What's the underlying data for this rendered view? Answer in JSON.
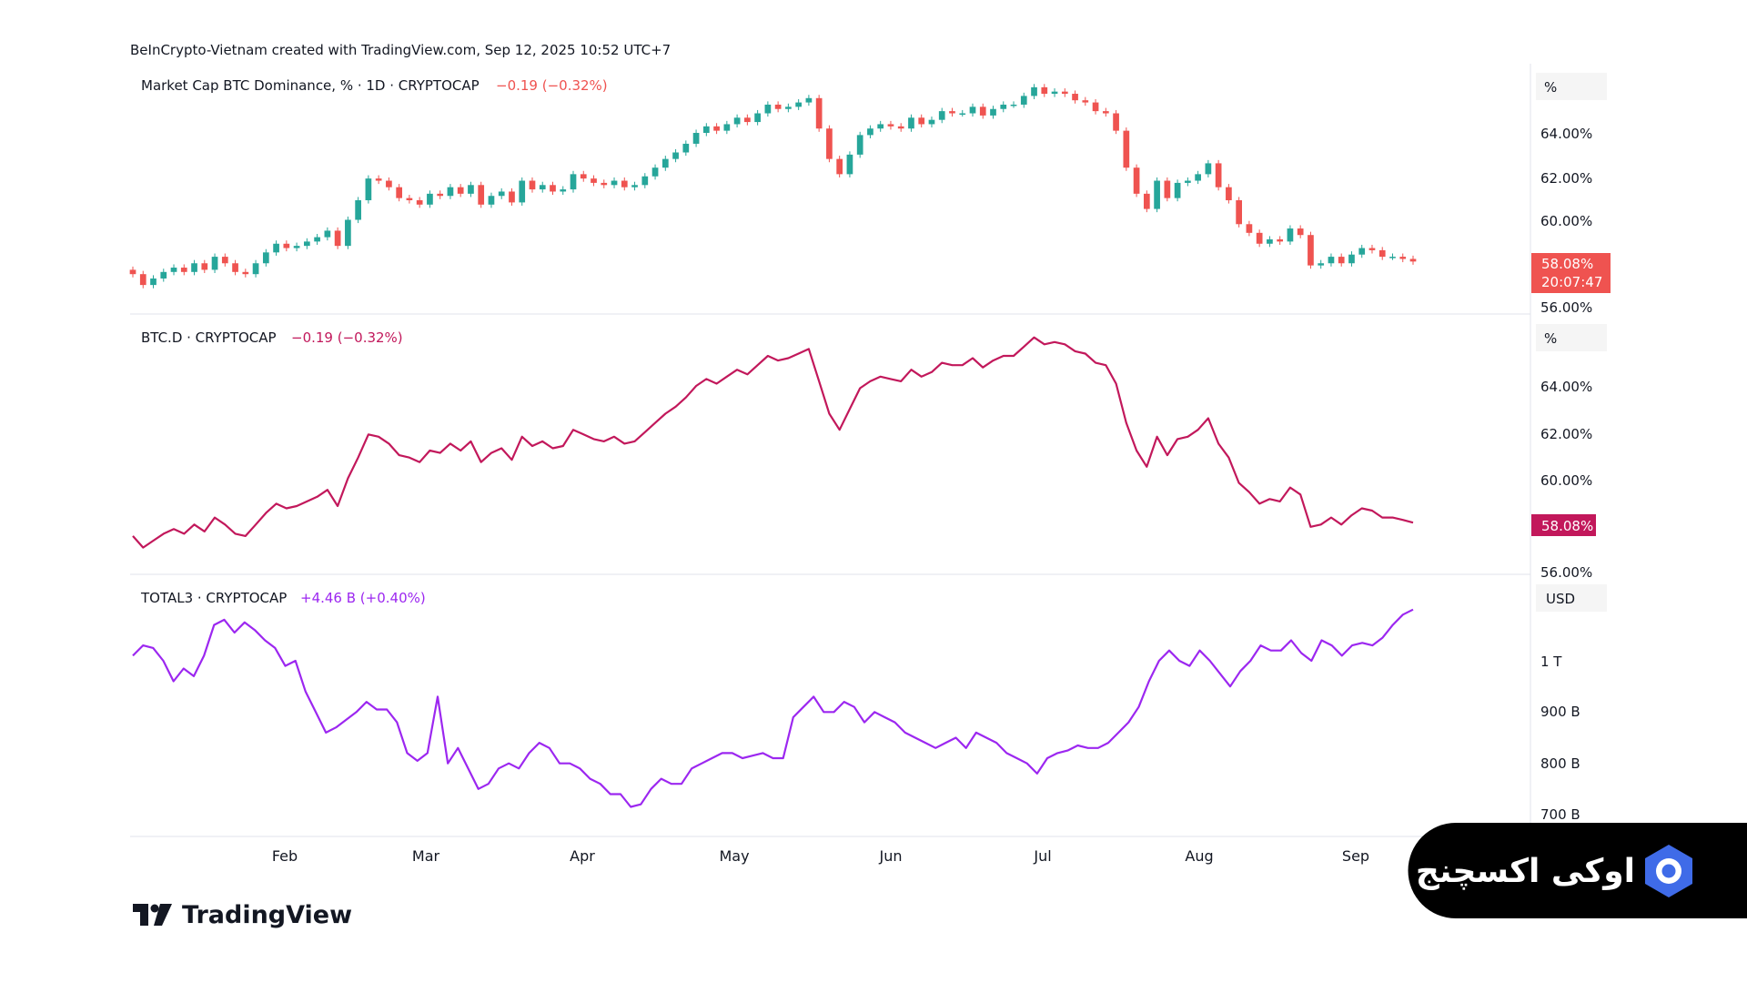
{
  "header": {
    "attribution": "BeInCrypto-Vietnam created with TradingView.com, Sep 12, 2025 10:52 UTC+7"
  },
  "colors": {
    "up": "#26a69a",
    "down": "#ef5350",
    "btcd_line": "#c2185b",
    "total3_line": "#9c27f0",
    "last_badge_candle": "#ef5350",
    "last_badge_line": "#c2185b"
  },
  "branding": {
    "tradingview": "TradingView",
    "watermark": "اوکی اکسچنج"
  },
  "panes": [
    {
      "id": "btc-dominance-candles",
      "legend_name": "Market Cap BTC Dominance, % · 1D · CRYPTOCAP",
      "legend_change": "−0.19 (−0.32%)",
      "unit": "%",
      "ticks": [
        "64.00%",
        "62.00%",
        "60.00%",
        "56.00%"
      ],
      "last_value": "58.08%",
      "countdown": "20:07:47"
    },
    {
      "id": "btc-d-line",
      "legend_name": "BTC.D · CRYPTOCAP",
      "legend_change": "−0.19 (−0.32%)",
      "unit": "%",
      "ticks": [
        "64.00%",
        "62.00%",
        "60.00%",
        "56.00%"
      ],
      "last_value": "58.08%"
    },
    {
      "id": "total3-line",
      "legend_name": "TOTAL3 · CRYPTOCAP",
      "legend_change": "+4.46 B (+0.40%)",
      "unit": "USD",
      "ticks": [
        "1 T",
        "900 B",
        "800 B",
        "700 B"
      ]
    }
  ],
  "x_axis": {
    "ticks": [
      "Feb",
      "Mar",
      "Apr",
      "May",
      "Jun",
      "Jul",
      "Aug",
      "Sep"
    ]
  },
  "chart_data": [
    {
      "type": "line",
      "title": "Market Cap BTC Dominance, % · 1D · CRYPTOCAP",
      "render": "candlestick",
      "unit": "%",
      "x_ticks": [
        "Feb",
        "Mar",
        "Apr",
        "May",
        "Jun",
        "Jul",
        "Aug",
        "Sep"
      ],
      "ylim": [
        55.4,
        66.6
      ],
      "series": [
        {
          "values": [
            57.5,
            57.0,
            57.3,
            57.6,
            57.8,
            57.6,
            58.0,
            57.7,
            58.3,
            58.0,
            57.6,
            57.5,
            58.0,
            58.5,
            58.9,
            58.7,
            58.8,
            59.0,
            59.2,
            59.5,
            58.8,
            60.0,
            60.9,
            61.9,
            61.8,
            61.5,
            61.0,
            60.9,
            60.7,
            61.2,
            61.1,
            61.5,
            61.2,
            61.6,
            60.7,
            61.1,
            61.3,
            60.8,
            61.8,
            61.4,
            61.6,
            61.3,
            61.4,
            62.1,
            61.9,
            61.7,
            61.6,
            61.8,
            61.5,
            61.6,
            62.0,
            62.4,
            62.8,
            63.1,
            63.5,
            64.0,
            64.3,
            64.1,
            64.4,
            64.7,
            64.5,
            64.9,
            65.3,
            65.1,
            65.2,
            65.4,
            65.6,
            64.2,
            62.8,
            62.1,
            63.0,
            63.9,
            64.2,
            64.4,
            64.3,
            64.2,
            64.7,
            64.4,
            64.6,
            65.0,
            64.9,
            64.9,
            65.2,
            64.8,
            65.1,
            65.3,
            65.3,
            65.7,
            66.1,
            65.8,
            65.9,
            65.8,
            65.5,
            65.4,
            65.0,
            64.9,
            64.1,
            62.4,
            61.2,
            60.5,
            61.8,
            61.0,
            61.7,
            61.8,
            62.1,
            62.6,
            61.5,
            60.9,
            59.8,
            59.4,
            58.9,
            59.1,
            59.0,
            59.6,
            59.3,
            57.9,
            58.0,
            58.3,
            58.0,
            58.4,
            58.7,
            58.6,
            58.3,
            58.3,
            58.2,
            58.08
          ]
        }
      ]
    },
    {
      "type": "line",
      "title": "BTC.D · CRYPTOCAP",
      "unit": "%",
      "x_ticks": [
        "Feb",
        "Mar",
        "Apr",
        "May",
        "Jun",
        "Jul",
        "Aug",
        "Sep"
      ],
      "ylim": [
        55.4,
        66.6
      ],
      "series": [
        {
          "values": [
            57.5,
            57.0,
            57.3,
            57.6,
            57.8,
            57.6,
            58.0,
            57.7,
            58.3,
            58.0,
            57.6,
            57.5,
            58.0,
            58.5,
            58.9,
            58.7,
            58.8,
            59.0,
            59.2,
            59.5,
            58.8,
            60.0,
            60.9,
            61.9,
            61.8,
            61.5,
            61.0,
            60.9,
            60.7,
            61.2,
            61.1,
            61.5,
            61.2,
            61.6,
            60.7,
            61.1,
            61.3,
            60.8,
            61.8,
            61.4,
            61.6,
            61.3,
            61.4,
            62.1,
            61.9,
            61.7,
            61.6,
            61.8,
            61.5,
            61.6,
            62.0,
            62.4,
            62.8,
            63.1,
            63.5,
            64.0,
            64.3,
            64.1,
            64.4,
            64.7,
            64.5,
            64.9,
            65.3,
            65.1,
            65.2,
            65.4,
            65.6,
            64.2,
            62.8,
            62.1,
            63.0,
            63.9,
            64.2,
            64.4,
            64.3,
            64.2,
            64.7,
            64.4,
            64.6,
            65.0,
            64.9,
            64.9,
            65.2,
            64.8,
            65.1,
            65.3,
            65.3,
            65.7,
            66.1,
            65.8,
            65.9,
            65.8,
            65.5,
            65.4,
            65.0,
            64.9,
            64.1,
            62.4,
            61.2,
            60.5,
            61.8,
            61.0,
            61.7,
            61.8,
            62.1,
            62.6,
            61.5,
            60.9,
            59.8,
            59.4,
            58.9,
            59.1,
            59.0,
            59.6,
            59.3,
            57.9,
            58.0,
            58.3,
            58.0,
            58.4,
            58.7,
            58.6,
            58.3,
            58.3,
            58.2,
            58.08
          ]
        }
      ]
    },
    {
      "type": "line",
      "title": "TOTAL3 · CRYPTOCAP",
      "unit": "USD (billions)",
      "x_ticks": [
        "Feb",
        "Mar",
        "Apr",
        "May",
        "Jun",
        "Jul",
        "Aug",
        "Sep"
      ],
      "ylim": [
        700,
        1150
      ],
      "series": [
        {
          "values": [
            1010,
            1030,
            1025,
            1000,
            960,
            985,
            970,
            1010,
            1070,
            1080,
            1055,
            1075,
            1060,
            1040,
            1025,
            990,
            1000,
            940,
            900,
            860,
            870,
            885,
            900,
            920,
            905,
            905,
            880,
            820,
            805,
            820,
            930,
            800,
            830,
            790,
            750,
            760,
            790,
            800,
            790,
            820,
            840,
            830,
            800,
            800,
            790,
            770,
            760,
            740,
            740,
            715,
            720,
            750,
            770,
            760,
            760,
            790,
            800,
            810,
            820,
            820,
            810,
            815,
            820,
            810,
            810,
            890,
            910,
            930,
            900,
            900,
            920,
            910,
            880,
            900,
            890,
            880,
            860,
            850,
            840,
            830,
            840,
            850,
            830,
            860,
            850,
            840,
            820,
            810,
            800,
            780,
            810,
            820,
            825,
            835,
            830,
            830,
            840,
            860,
            880,
            910,
            960,
            1000,
            1020,
            1000,
            990,
            1020,
            1000,
            975,
            950,
            980,
            1000,
            1030,
            1020,
            1020,
            1040,
            1015,
            1000,
            1040,
            1030,
            1010,
            1030,
            1035,
            1030,
            1045,
            1070,
            1090,
            1100
          ]
        }
      ]
    }
  ]
}
